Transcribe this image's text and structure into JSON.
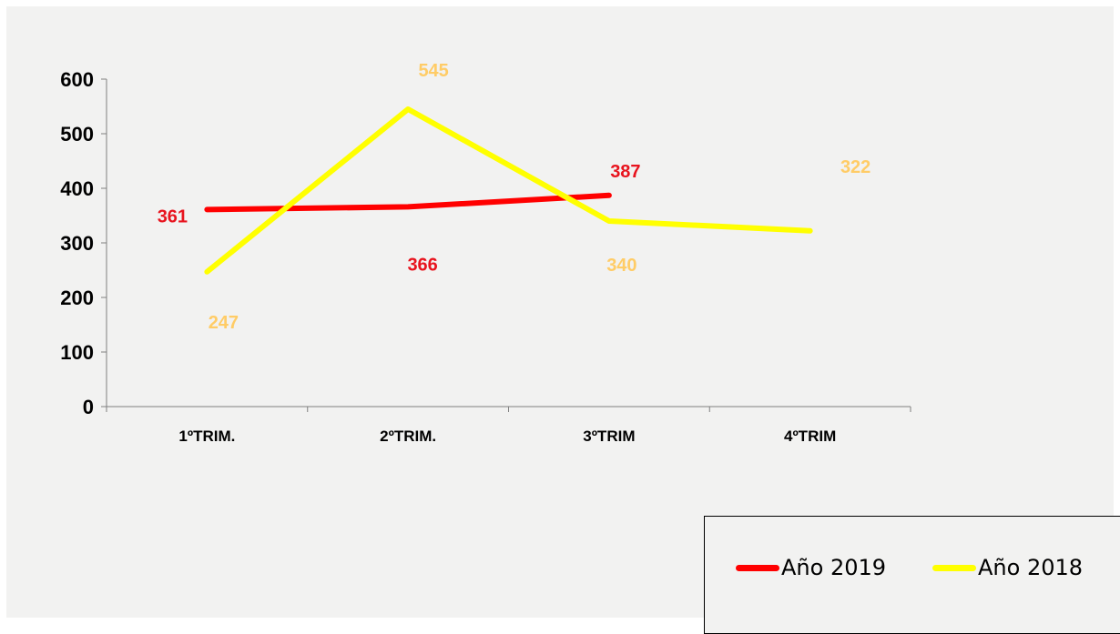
{
  "chart_data": {
    "type": "line",
    "categories": [
      "1ºTRIM.",
      "2ºTRIM.",
      "3ºTRIM",
      "4ºTRIM"
    ],
    "ylim": [
      0,
      600
    ],
    "yticks": [
      "0",
      "100",
      "200",
      "300",
      "400",
      "500",
      "600"
    ],
    "series": [
      {
        "name": "Año 2019",
        "values": [
          361,
          366,
          387,
          null
        ],
        "labels": [
          "361",
          "366",
          "387",
          ""
        ],
        "color": "#ff0000",
        "label_color": "#e8141e"
      },
      {
        "name": "Año 2018",
        "values": [
          247,
          545,
          340,
          322
        ],
        "labels": [
          "247",
          "545",
          "340",
          "322"
        ],
        "color": "#ffff00",
        "label_color": "#ffcc66"
      }
    ],
    "grid": false,
    "legend_position": "bottom-right"
  }
}
